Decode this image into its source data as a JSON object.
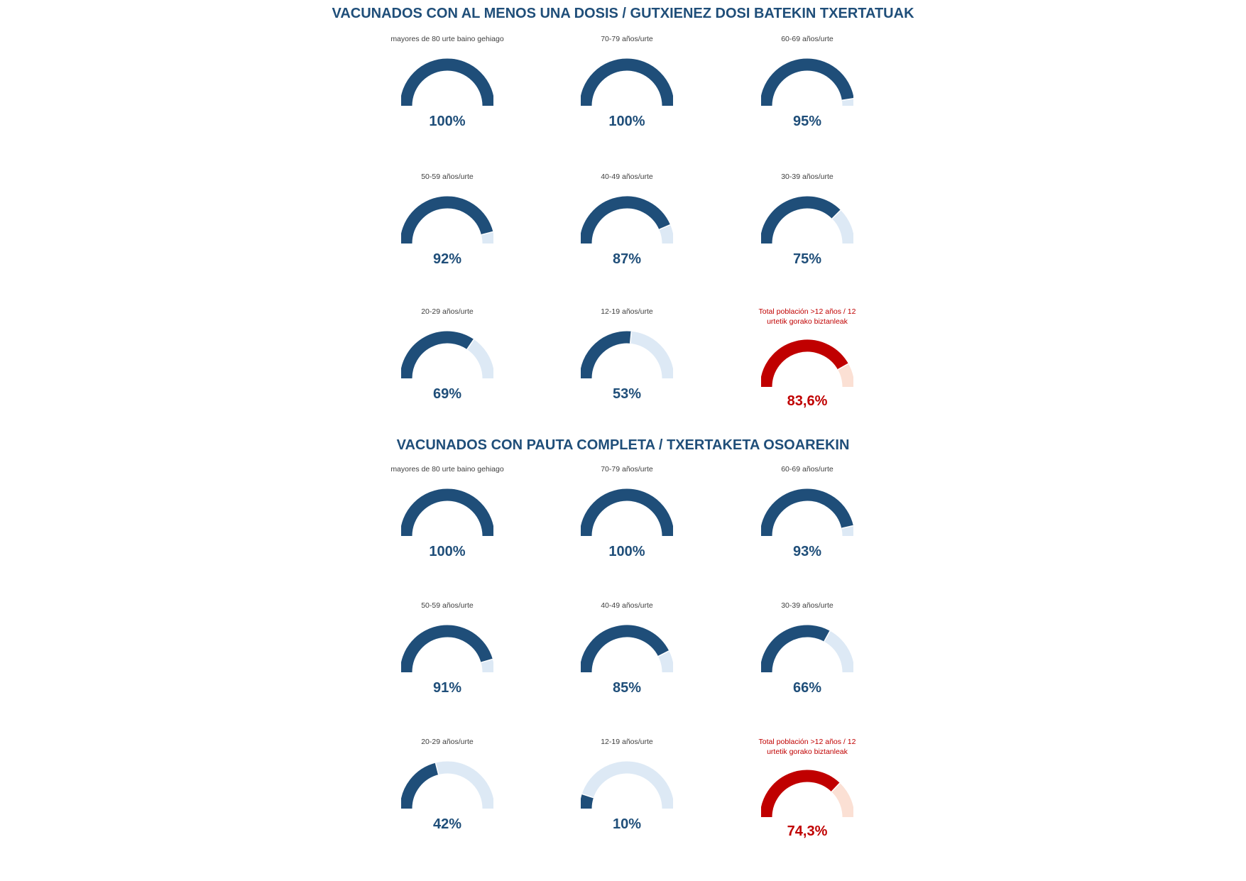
{
  "sections": [
    {
      "title": "VACUNADOS CON AL MENOS UNA DOSIS  / GUTXIENEZ DOSI BATEKIN TXERTATUAK",
      "gauges": [
        {
          "label": "mayores de 80 urte baino gehiago",
          "value": 100,
          "display": "100%",
          "kind": "age"
        },
        {
          "label": "70-79 años/urte",
          "value": 100,
          "display": "100%",
          "kind": "age"
        },
        {
          "label": "60-69 años/urte",
          "value": 95,
          "display": "95%",
          "kind": "age"
        },
        {
          "label": "50-59 años/urte",
          "value": 92,
          "display": "92%",
          "kind": "age"
        },
        {
          "label": "40-49 años/urte",
          "value": 87,
          "display": "87%",
          "kind": "age"
        },
        {
          "label": "30-39 años/urte",
          "value": 75,
          "display": "75%",
          "kind": "age"
        },
        {
          "label": "20-29 años/urte",
          "value": 69,
          "display": "69%",
          "kind": "age"
        },
        {
          "label": "12-19 años/urte",
          "value": 53,
          "display": "53%",
          "kind": "age"
        },
        {
          "label": "Total población >12 años / 12 urtetik gorako biztanleak",
          "value": 83.6,
          "display": "83,6%",
          "kind": "total"
        }
      ]
    },
    {
      "title": "VACUNADOS CON PAUTA COMPLETA  / TXERTAKETA OSOAREKIN",
      "gauges": [
        {
          "label": "mayores de 80 urte baino gehiago",
          "value": 100,
          "display": "100%",
          "kind": "age"
        },
        {
          "label": "70-79 años/urte",
          "value": 100,
          "display": "100%",
          "kind": "age"
        },
        {
          "label": "60-69 años/urte",
          "value": 93,
          "display": "93%",
          "kind": "age"
        },
        {
          "label": "50-59 años/urte",
          "value": 91,
          "display": "91%",
          "kind": "age"
        },
        {
          "label": "40-49 años/urte",
          "value": 85,
          "display": "85%",
          "kind": "age"
        },
        {
          "label": "30-39 años/urte",
          "value": 66,
          "display": "66%",
          "kind": "age"
        },
        {
          "label": "20-29 años/urte",
          "value": 42,
          "display": "42%",
          "kind": "age"
        },
        {
          "label": "12-19 años/urte",
          "value": 10,
          "display": "10%",
          "kind": "age"
        },
        {
          "label": "Total población >12 años / 12 urtetik gorako biztanleak",
          "value": 74.3,
          "display": "74,3%",
          "kind": "total"
        }
      ]
    }
  ],
  "colors": {
    "title": "#1f4e79",
    "age_fill": "#1f4e79",
    "age_track": "#dde9f5",
    "total_fill": "#c00000",
    "total_track": "#fbe0d4",
    "label": "#404040"
  },
  "chart_data": [
    {
      "type": "gauge",
      "title": "VACUNADOS CON AL MENOS UNA DOSIS  / GUTXIENEZ DOSI BATEKIN TXERTATUAK",
      "categories": [
        "mayores de 80 urte baino gehiago",
        "70-79 años/urte",
        "60-69 años/urte",
        "50-59 años/urte",
        "40-49 años/urte",
        "30-39 años/urte",
        "20-29 años/urte",
        "12-19 años/urte",
        "Total población >12 años / 12 urtetik gorako biztanleak"
      ],
      "values": [
        100,
        100,
        95,
        92,
        87,
        75,
        69,
        53,
        83.6
      ],
      "ylim": [
        0,
        100
      ]
    },
    {
      "type": "gauge",
      "title": "VACUNADOS CON PAUTA COMPLETA  / TXERTAKETA OSOAREKIN",
      "categories": [
        "mayores de 80 urte baino gehiago",
        "70-79 años/urte",
        "60-69 años/urte",
        "50-59 años/urte",
        "40-49 años/urte",
        "30-39 años/urte",
        "20-29 años/urte",
        "12-19 años/urte",
        "Total población >12 años / 12 urtetik gorako biztanleak"
      ],
      "values": [
        100,
        100,
        93,
        91,
        85,
        66,
        42,
        10,
        74.3
      ],
      "ylim": [
        0,
        100
      ]
    }
  ]
}
